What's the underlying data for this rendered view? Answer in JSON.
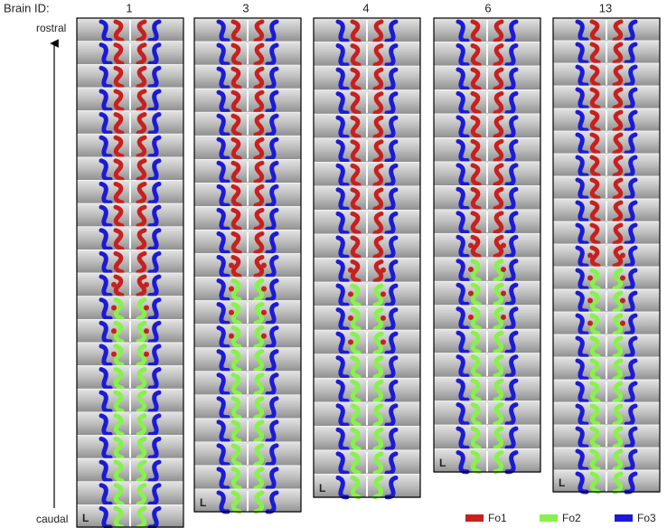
{
  "header": {
    "label": "Brain ID:"
  },
  "axis": {
    "top": "rostral",
    "bottom": "caudal"
  },
  "columns": [
    {
      "id": "1",
      "corner": "L"
    },
    {
      "id": "3",
      "corner": "L"
    },
    {
      "id": "4",
      "corner": "L"
    },
    {
      "id": "6",
      "corner": "L"
    },
    {
      "id": "13",
      "corner": "L"
    }
  ],
  "legend": [
    {
      "name": "Fo1",
      "color": "#c8201e"
    },
    {
      "name": "Fo2",
      "color": "#86f24a"
    },
    {
      "name": "Fo3",
      "color": "#1c1ad6"
    }
  ]
}
